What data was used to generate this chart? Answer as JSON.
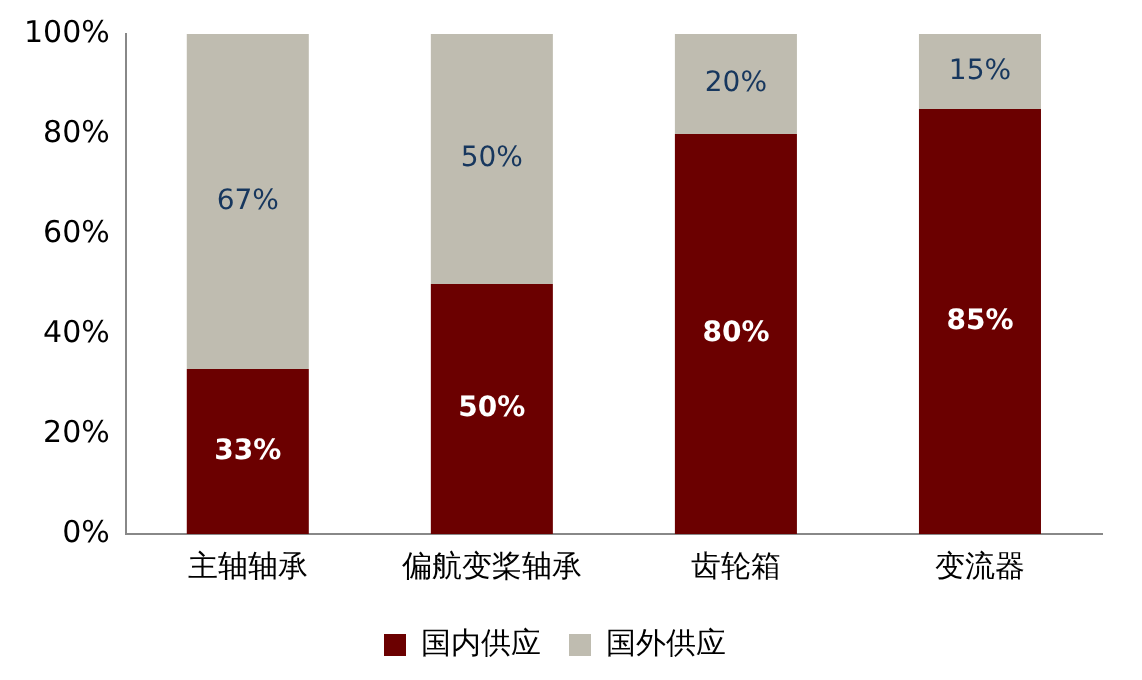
{
  "chart_data": {
    "type": "bar",
    "stacked": true,
    "categories": [
      "主轴轴承",
      "偏航变桨轴承",
      "齿轮箱",
      "变流器"
    ],
    "series": [
      {
        "name": "国内供应",
        "color": "#6b0000",
        "values": [
          33,
          50,
          80,
          85
        ],
        "value_labels": [
          "33%",
          "50%",
          "80%",
          "85%"
        ]
      },
      {
        "name": "国外供应",
        "color": "#bfbcb0",
        "values": [
          67,
          50,
          20,
          15
        ],
        "value_labels": [
          "67%",
          "50%",
          "20%",
          "15%"
        ]
      }
    ],
    "ylim": [
      0,
      100
    ],
    "yticks": [
      {
        "value": 0,
        "label": "0%"
      },
      {
        "value": 20,
        "label": "20%"
      },
      {
        "value": 40,
        "label": "40%"
      },
      {
        "value": 60,
        "label": "60%"
      },
      {
        "value": 80,
        "label": "80%"
      },
      {
        "value": 100,
        "label": "100%"
      }
    ],
    "grid": false,
    "legend": "bottom"
  }
}
